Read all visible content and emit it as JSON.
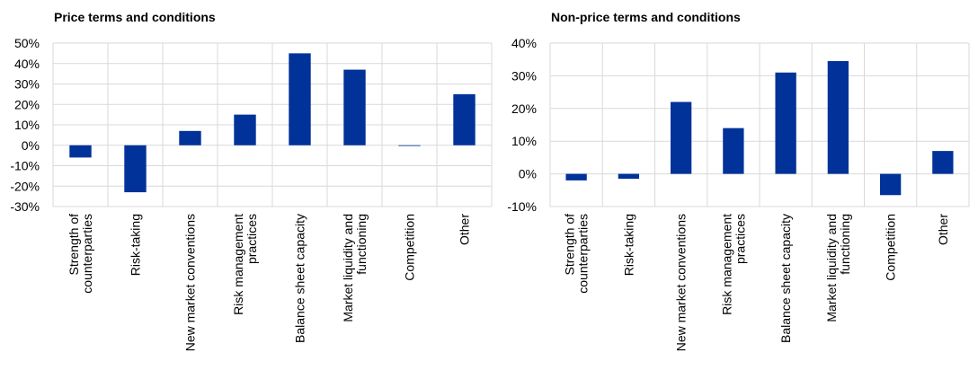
{
  "chart_data": [
    {
      "type": "bar",
      "title": "Price terms and conditions",
      "categories": [
        [
          "Strength of",
          "counterparties"
        ],
        [
          "Risk-taking"
        ],
        [
          "New market conventions"
        ],
        [
          "Risk management",
          "practices"
        ],
        [
          "Balance sheet capacity"
        ],
        [
          "Market liquidity and",
          "functioning"
        ],
        [
          "Competition"
        ],
        [
          "Other"
        ]
      ],
      "values": [
        -6,
        -23,
        7,
        15,
        45,
        37,
        0,
        25
      ],
      "ylim": [
        -30,
        50
      ],
      "yticks": [
        50,
        40,
        30,
        20,
        10,
        0,
        -10,
        -20,
        -30
      ],
      "ytick_labels": [
        "50%",
        "40%",
        "30%",
        "20%",
        "10%",
        "0%",
        "-10%",
        "-20%",
        "-30%"
      ],
      "grid": true,
      "bar_color": "#003299"
    },
    {
      "type": "bar",
      "title": "Non-price terms and conditions",
      "categories": [
        [
          "Strength of",
          "counterparties"
        ],
        [
          "Risk-taking"
        ],
        [
          "New market conventions"
        ],
        [
          "Risk management",
          "practices"
        ],
        [
          "Balance sheet capacity"
        ],
        [
          "Market liquidity and",
          "functioning"
        ],
        [
          "Competition"
        ],
        [
          "Other"
        ]
      ],
      "values": [
        -2,
        -1.5,
        22,
        14,
        31,
        34.5,
        -6.5,
        7
      ],
      "ylim": [
        -10,
        40
      ],
      "yticks": [
        40,
        30,
        20,
        10,
        0,
        -10
      ],
      "ytick_labels": [
        "40%",
        "30%",
        "20%",
        "10%",
        "0%",
        "-10%"
      ],
      "grid": true,
      "bar_color": "#003299"
    }
  ]
}
